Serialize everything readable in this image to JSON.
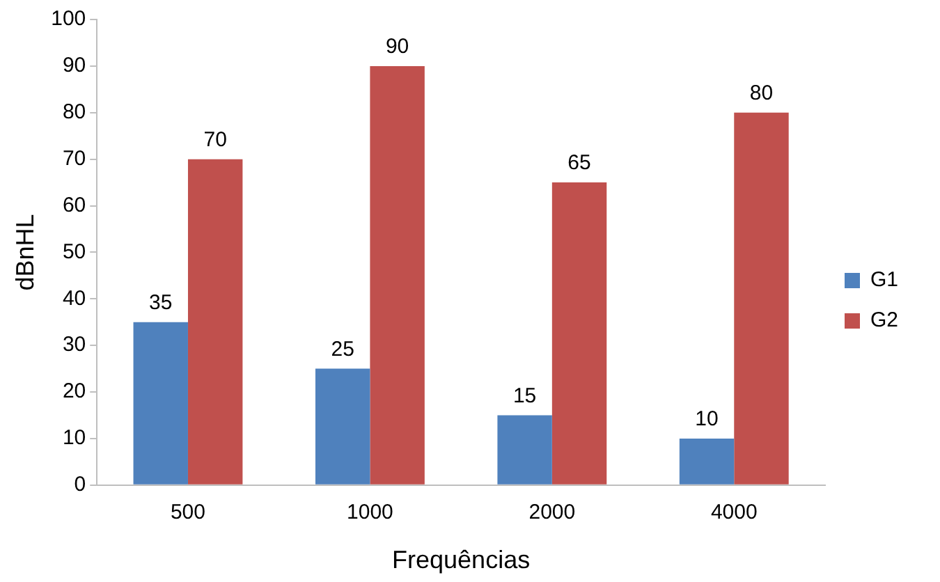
{
  "chart_data": {
    "type": "bar",
    "xlabel": "Frequências",
    "ylabel": "dBnHL",
    "categories": [
      "500",
      "1000",
      "2000",
      "4000"
    ],
    "series": [
      {
        "name": "G1",
        "color": "#4f81bd",
        "values": [
          35,
          25,
          15,
          10
        ]
      },
      {
        "name": "G2",
        "color": "#c0504d",
        "values": [
          70,
          90,
          65,
          80
        ]
      }
    ],
    "ylim": [
      0,
      100
    ],
    "yticks": [
      0,
      10,
      20,
      30,
      40,
      50,
      60,
      70,
      80,
      90,
      100
    ],
    "grid": false,
    "legend": "right",
    "data_labels": true
  }
}
